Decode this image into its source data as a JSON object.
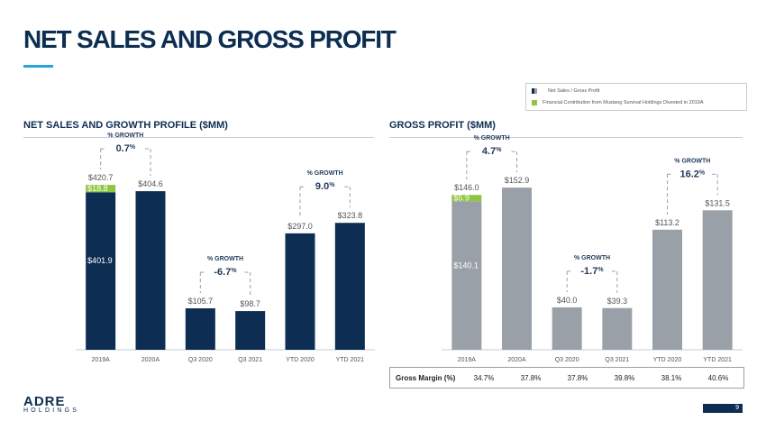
{
  "page_title": "NET SALES AND GROSS PROFIT",
  "legend": [
    {
      "label": "Net Sales  /  Gross Profit",
      "color": "#0d2e52",
      "color2": "#9aa0a8"
    },
    {
      "label": "Financial Contribution from Mustang Survival Holdings Divested in 2019A",
      "color": "#8dc63f"
    }
  ],
  "chart_data": [
    {
      "type": "bar",
      "title": "NET SALES AND GROWTH PROFILE ($MM)",
      "categories": [
        "2019A",
        "2020A",
        "Q3 2020",
        "Q3 2021",
        "YTD 2020",
        "YTD 2021"
      ],
      "series": [
        {
          "values": [
            401.9,
            404.6,
            105.7,
            98.7,
            297.0,
            323.8
          ],
          "color": "#0d2e52"
        },
        {
          "values": [
            18.8,
            0,
            0,
            0,
            0,
            0
          ],
          "color": "#8dc63f"
        }
      ],
      "total_labels": [
        "$420.7",
        "$404.6",
        "$105.7",
        "$98.7",
        "$297.0",
        "$323.8"
      ],
      "inner_labels": [
        {
          "index": 0,
          "segment": "base",
          "text": "$401.9"
        },
        {
          "index": 0,
          "segment": "top",
          "text": "$18.8"
        }
      ],
      "growth": [
        {
          "from": 0,
          "to": 1,
          "heading": "% GROWTH",
          "value": "0.7",
          "suffix": "%"
        },
        {
          "from": 2,
          "to": 3,
          "heading": "% GROWTH",
          "value": "-6.7",
          "suffix": "%"
        },
        {
          "from": 4,
          "to": 5,
          "heading": "% GROWTH",
          "value": "9.0",
          "suffix": "%"
        }
      ],
      "ylim": [
        0,
        460
      ]
    },
    {
      "type": "bar",
      "title": "GROSS PROFIT ($MM)",
      "categories": [
        "2019A",
        "2020A",
        "Q3 2020",
        "Q3 2021",
        "YTD 2020",
        "YTD 2021"
      ],
      "series": [
        {
          "values": [
            140.1,
            152.9,
            40.0,
            39.3,
            113.2,
            131.5
          ],
          "color": "#9aa0a8"
        },
        {
          "values": [
            5.9,
            0,
            0,
            0,
            0,
            0
          ],
          "color": "#8dc63f"
        }
      ],
      "total_labels": [
        "$146.0",
        "$152.9",
        "$40.0",
        "$39.3",
        "$113.2",
        "$131.5"
      ],
      "inner_labels": [
        {
          "index": 0,
          "segment": "base",
          "text": "$140.1"
        },
        {
          "index": 0,
          "segment": "top",
          "text": "$5.9"
        }
      ],
      "growth": [
        {
          "from": 0,
          "to": 1,
          "heading": "% GROWTH",
          "value": "4.7",
          "suffix": "%"
        },
        {
          "from": 2,
          "to": 3,
          "heading": "% GROWTH",
          "value": "-1.7",
          "suffix": "%"
        },
        {
          "from": 4,
          "to": 5,
          "heading": "% GROWTH",
          "value": "16.2",
          "suffix": "%"
        }
      ],
      "ylim": [
        0,
        170
      ]
    }
  ],
  "gross_margin": {
    "label": "Gross Margin (%)",
    "values": [
      "34.7%",
      "37.8%",
      "37.8%",
      "39.8%",
      "38.1%",
      "40.6%"
    ]
  },
  "logo": {
    "top": "ADRE",
    "bottom": "HOLDINGS"
  },
  "page_number": "9"
}
